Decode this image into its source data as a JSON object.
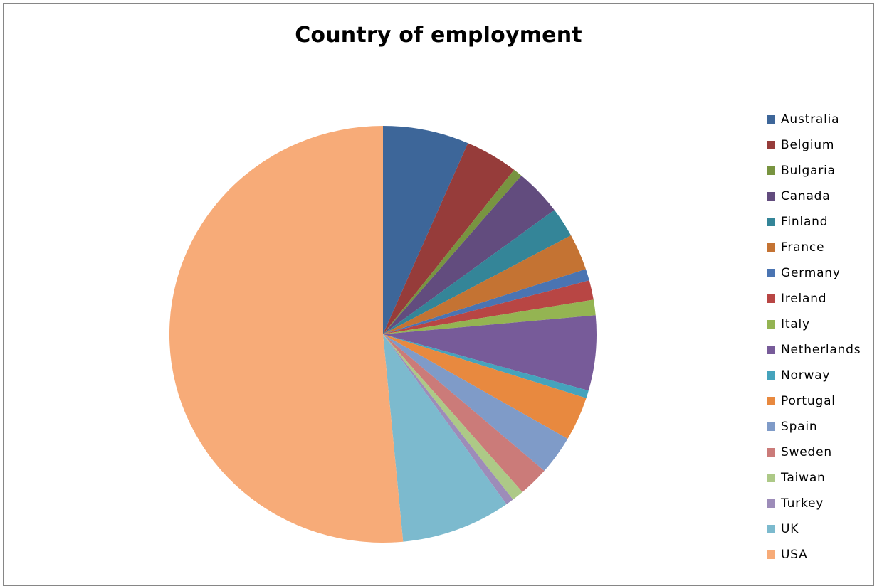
{
  "chart_data": {
    "type": "pie",
    "title": "Country of employment",
    "legend_position": "right",
    "categories": [
      "Australia",
      "Belgium",
      "Bulgaria",
      "Canada",
      "Finland",
      "France",
      "Germany",
      "Ireland",
      "Italy",
      "Netherlands",
      "Norway",
      "Portugal",
      "Spain",
      "Sweden",
      "Taiwan",
      "Turkey",
      "UK",
      "USA"
    ],
    "values": [
      6.5,
      4.0,
      0.7,
      3.6,
      2.3,
      2.8,
      0.9,
      1.5,
      1.2,
      5.8,
      0.6,
      3.4,
      3.0,
      2.3,
      0.9,
      0.6,
      8.3,
      51.4
    ],
    "colors": [
      "#3D6699",
      "#963C3A",
      "#789440",
      "#624C7E",
      "#348598",
      "#C47333",
      "#4A74B2",
      "#B84644",
      "#94B452",
      "#775B99",
      "#45A3BC",
      "#E8893F",
      "#7F9BC8",
      "#CB7B79",
      "#ADC987",
      "#9D8CB9",
      "#7CBACE",
      "#F7AB78"
    ]
  }
}
